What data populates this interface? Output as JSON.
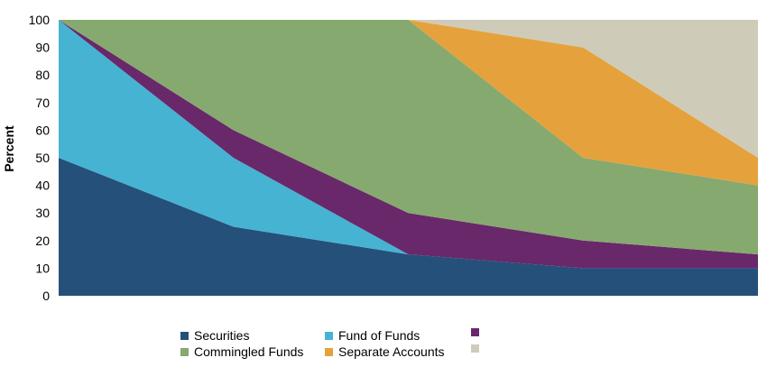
{
  "chart_data": {
    "type": "area",
    "stacked": true,
    "title": "",
    "xlabel": "",
    "ylabel": "Percent",
    "ylim": [
      0,
      100
    ],
    "yticks": [
      0,
      10,
      20,
      30,
      40,
      50,
      60,
      70,
      80,
      90,
      100
    ],
    "x": [
      0,
      1,
      2,
      3,
      4
    ],
    "grid": false,
    "legend_position": "bottom",
    "series": [
      {
        "name": "Securities",
        "color": "#25507a",
        "values": [
          50,
          25,
          15,
          10,
          10
        ]
      },
      {
        "name": "Fund of Funds",
        "color": "#46b3d3",
        "values": [
          50,
          25,
          0,
          0,
          0
        ]
      },
      {
        "name": "",
        "color": "#68286a",
        "values": [
          0,
          10,
          15,
          10,
          5
        ]
      },
      {
        "name": "Commingled Funds",
        "color": "#86a96f",
        "values": [
          0,
          40,
          70,
          30,
          25
        ]
      },
      {
        "name": "Separate Accounts",
        "color": "#e5a23c",
        "values": [
          0,
          0,
          0,
          40,
          10
        ]
      },
      {
        "name": "",
        "color": "#cfcbb9",
        "values": [
          0,
          0,
          0,
          10,
          50
        ]
      }
    ]
  }
}
